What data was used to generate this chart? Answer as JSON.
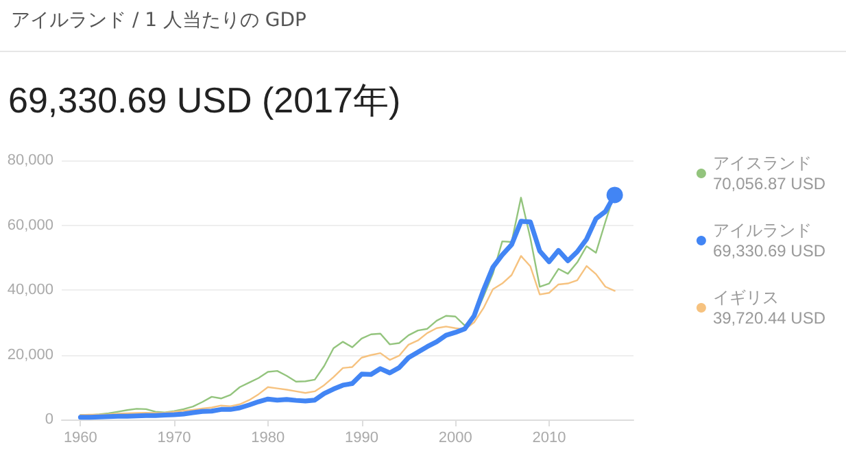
{
  "chart_data": {
    "type": "line",
    "title": "アイルランド / 1 人当たりの GDP",
    "subtitle": "69,330.69 USD (2017年)",
    "annotations": [
      "70,056.87 USD",
      "69,330.69 USD",
      "39,720.44 USD"
    ],
    "x": [
      1960,
      1961,
      1962,
      1963,
      1964,
      1965,
      1966,
      1967,
      1968,
      1969,
      1970,
      1971,
      1972,
      1973,
      1974,
      1975,
      1976,
      1977,
      1978,
      1979,
      1980,
      1981,
      1982,
      1983,
      1984,
      1985,
      1986,
      1987,
      1988,
      1989,
      1990,
      1991,
      1992,
      1993,
      1994,
      1995,
      1996,
      1997,
      1998,
      1999,
      2000,
      2001,
      2002,
      2003,
      2004,
      2005,
      2006,
      2007,
      2008,
      2009,
      2010,
      2011,
      2012,
      2013,
      2014,
      2015,
      2016,
      2017
    ],
    "series": [
      {
        "name": "アイスランド",
        "color": "#93c47d",
        "values": [
          1400,
          1400,
          1600,
          1900,
          2400,
          2900,
          3300,
          3200,
          2400,
          2200,
          2600,
          3200,
          4000,
          5400,
          7000,
          6500,
          7600,
          10000,
          11400,
          12800,
          14700,
          15000,
          13500,
          11700,
          11800,
          12300,
          16500,
          22000,
          24000,
          22300,
          25000,
          26300,
          26500,
          23200,
          23600,
          26000,
          27500,
          28000,
          30500,
          32000,
          31800,
          29000,
          31500,
          38000,
          45000,
          55000,
          54800,
          68500,
          56000,
          41000,
          42000,
          46500,
          45000,
          48500,
          53500,
          51500,
          61000,
          70056.87
        ]
      },
      {
        "name": "アイルランド",
        "color": "#4285f4",
        "values": [
          700,
          700,
          800,
          900,
          1000,
          1000,
          1100,
          1200,
          1200,
          1400,
          1500,
          1700,
          2100,
          2500,
          2600,
          3100,
          3100,
          3600,
          4500,
          5500,
          6300,
          6000,
          6200,
          5900,
          5700,
          6000,
          8000,
          9400,
          10600,
          11100,
          14000,
          13900,
          15700,
          14400,
          16000,
          19100,
          20800,
          22500,
          24000,
          26000,
          26900,
          28000,
          32000,
          40000,
          47000,
          50800,
          54000,
          61200,
          61000,
          52000,
          48700,
          52200,
          49000,
          51800,
          55700,
          62000,
          64200,
          69330.69
        ]
      },
      {
        "name": "イギリス",
        "color": "#f6c27f",
        "values": [
          1400,
          1500,
          1500,
          1600,
          1800,
          1900,
          2000,
          2100,
          2000,
          2100,
          2400,
          2700,
          3000,
          3400,
          3700,
          4300,
          4100,
          4700,
          6000,
          7800,
          10000,
          9600,
          9200,
          8700,
          8200,
          8700,
          10600,
          13100,
          15900,
          16200,
          19100,
          19900,
          20500,
          18400,
          19700,
          23100,
          24400,
          26700,
          28200,
          28700,
          28200,
          27800,
          30000,
          34400,
          40200,
          42000,
          44600,
          50500,
          47300,
          38600,
          39100,
          41700,
          42000,
          43000,
          47400,
          44900,
          41000,
          39720.44
        ]
      }
    ],
    "xlim": [
      1958,
      2019
    ],
    "xticks": [
      1960,
      1970,
      1980,
      1990,
      2000,
      2010
    ],
    "ylim": [
      0,
      80000
    ],
    "yticks": [
      {
        "value": 0,
        "label": "0"
      },
      {
        "value": 20000,
        "label": "20,000"
      },
      {
        "value": 40000,
        "label": "40,000"
      },
      {
        "value": 60000,
        "label": "60,000"
      },
      {
        "value": 80000,
        "label": "80,000"
      }
    ],
    "grid": "y",
    "legend": "right",
    "marker": "none"
  }
}
